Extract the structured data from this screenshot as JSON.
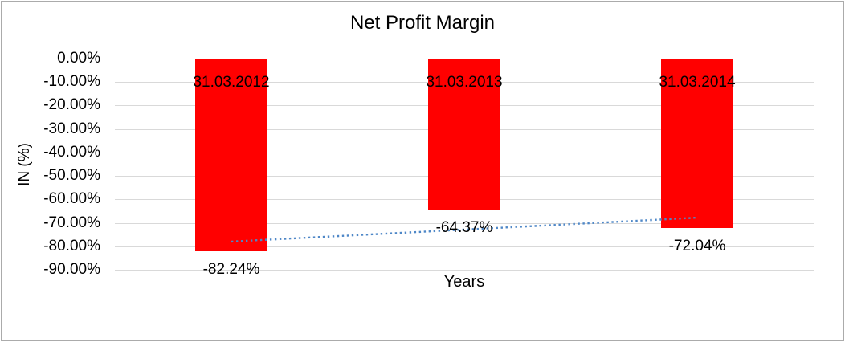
{
  "chart": {
    "title": "Net Profit Margin",
    "xlabel": "Years",
    "ylabel": "IN (%)"
  },
  "chart_data": {
    "type": "bar",
    "title": "Net Profit Margin",
    "xlabel": "Years",
    "ylabel": "IN (%)",
    "categories": [
      "31.03.2012",
      "31.03.2013",
      "31.03.2014"
    ],
    "values": [
      -82.24,
      -64.37,
      -72.04
    ],
    "value_labels": [
      "-82.24%",
      "-64.37%",
      "-72.04%"
    ],
    "y_tick_labels": [
      "0.00%",
      "-10.00%",
      "-20.00%",
      "-30.00%",
      "-40.00%",
      "-50.00%",
      "-60.00%",
      "-70.00%",
      "-80.00%",
      "-90.00%"
    ],
    "y_tick_values": [
      0,
      -10,
      -20,
      -30,
      -40,
      -50,
      -60,
      -70,
      -80,
      -90
    ],
    "ylim": [
      0,
      -90
    ],
    "grid": true,
    "legend": false,
    "trendline": {
      "style": "dotted",
      "start_value": -77.98,
      "end_value": -67.78,
      "color": "#4E87C7"
    },
    "colors": {
      "bar": "#FF0000",
      "gridline": "#D9D9D9",
      "text": "#000000",
      "frame_border": "#ABABAB"
    }
  }
}
